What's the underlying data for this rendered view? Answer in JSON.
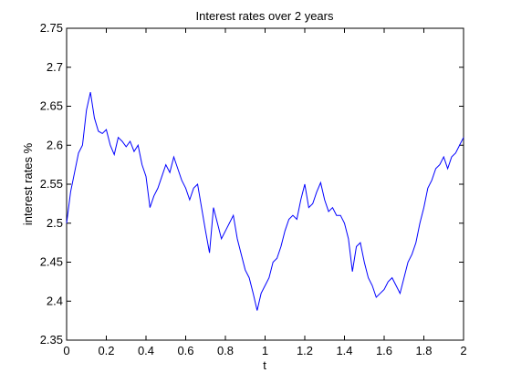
{
  "chart_data": {
    "type": "line",
    "title": "Interest rates over 2 years",
    "xlabel": "t",
    "ylabel": "interest rates %",
    "xlim": [
      0,
      2
    ],
    "ylim": [
      2.35,
      2.75
    ],
    "x_ticks": [
      0,
      0.2,
      0.4,
      0.6,
      0.8,
      1,
      1.2,
      1.4,
      1.6,
      1.8,
      2
    ],
    "x_tick_labels": [
      "0",
      "0.2",
      "0.4",
      "0.6",
      "0.8",
      "1",
      "1.2",
      "1.4",
      "1.6",
      "1.8",
      "2"
    ],
    "y_ticks": [
      2.35,
      2.4,
      2.45,
      2.5,
      2.55,
      2.6,
      2.65,
      2.7,
      2.75
    ],
    "y_tick_labels": [
      "2.35",
      "2.4",
      "2.45",
      "2.5",
      "2.55",
      "2.6",
      "2.65",
      "2.7",
      "2.75"
    ],
    "grid": false,
    "line_color": "#0000ff",
    "series": [
      {
        "x": [
          0,
          0.02,
          0.04,
          0.06,
          0.08,
          0.1,
          0.12,
          0.14,
          0.16,
          0.18,
          0.2,
          0.22,
          0.24,
          0.26,
          0.28,
          0.3,
          0.32,
          0.34,
          0.36,
          0.38,
          0.4,
          0.42,
          0.44,
          0.46,
          0.48,
          0.5,
          0.52,
          0.54,
          0.56,
          0.58,
          0.6,
          0.62,
          0.64,
          0.66,
          0.68,
          0.7,
          0.72,
          0.74,
          0.76,
          0.78,
          0.8,
          0.82,
          0.84,
          0.86,
          0.88,
          0.9,
          0.92,
          0.94,
          0.96,
          0.98,
          1.0,
          1.02,
          1.04,
          1.06,
          1.08,
          1.1,
          1.12,
          1.14,
          1.16,
          1.18,
          1.2,
          1.22,
          1.24,
          1.26,
          1.28,
          1.3,
          1.32,
          1.34,
          1.36,
          1.38,
          1.4,
          1.42,
          1.44,
          1.46,
          1.48,
          1.5,
          1.52,
          1.54,
          1.56,
          1.58,
          1.6,
          1.62,
          1.64,
          1.66,
          1.68,
          1.7,
          1.72,
          1.74,
          1.76,
          1.78,
          1.8,
          1.82,
          1.84,
          1.86,
          1.88,
          1.9,
          1.92,
          1.94,
          1.96,
          1.98,
          2.0
        ],
        "values": [
          2.5,
          2.54,
          2.565,
          2.59,
          2.6,
          2.645,
          2.668,
          2.635,
          2.618,
          2.615,
          2.62,
          2.6,
          2.588,
          2.61,
          2.605,
          2.598,
          2.605,
          2.592,
          2.6,
          2.575,
          2.56,
          2.52,
          2.535,
          2.545,
          2.56,
          2.575,
          2.565,
          2.585,
          2.57,
          2.555,
          2.545,
          2.53,
          2.545,
          2.55,
          2.52,
          2.49,
          2.462,
          2.52,
          2.5,
          2.48,
          2.49,
          2.5,
          2.51,
          2.48,
          2.46,
          2.44,
          2.43,
          2.41,
          2.388,
          2.41,
          2.42,
          2.43,
          2.45,
          2.455,
          2.47,
          2.49,
          2.505,
          2.51,
          2.505,
          2.53,
          2.55,
          2.52,
          2.525,
          2.54,
          2.552,
          2.53,
          2.515,
          2.52,
          2.51,
          2.51,
          2.5,
          2.48,
          2.438,
          2.47,
          2.475,
          2.45,
          2.43,
          2.42,
          2.405,
          2.41,
          2.415,
          2.425,
          2.43,
          2.42,
          2.41,
          2.43,
          2.45,
          2.46,
          2.475,
          2.5,
          2.52,
          2.545,
          2.555,
          2.57,
          2.575,
          2.585,
          2.57,
          2.585,
          2.59,
          2.6,
          2.61
        ]
      }
    ]
  }
}
